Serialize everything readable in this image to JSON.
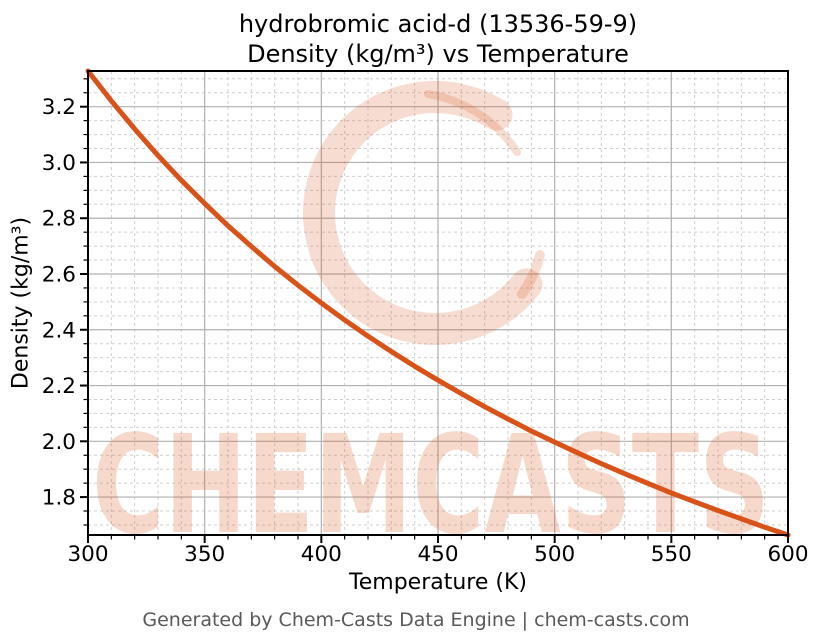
{
  "header": {
    "title_line1": "hydrobromic acid-d (13536-59-9)",
    "title_line2": "Density (kg/m³) vs Temperature"
  },
  "watermark": {
    "text": "CHEMCASTS",
    "color": "#d95319",
    "ring_opacity": 0.2,
    "text_opacity": 0.22
  },
  "footer": {
    "text": "Generated by Chem-Casts Data Engine | chem-casts.com"
  },
  "chart_data": {
    "type": "line",
    "title": "hydrobromic acid-d (13536-59-9) — Density (kg/m³) vs Temperature",
    "xlabel": "Temperature (K)",
    "ylabel": "Density (kg/m³)",
    "xlim": [
      300,
      600
    ],
    "ylim": [
      1.664,
      3.328
    ],
    "x_ticks": [
      300,
      350,
      400,
      450,
      500,
      550,
      600
    ],
    "y_ticks": [
      1.8,
      2.0,
      2.2,
      2.4,
      2.6,
      2.8,
      3.0,
      3.2
    ],
    "x_minor_step": 10,
    "y_minor_step": 0.05,
    "grid": {
      "major": true,
      "minor": true,
      "minor_style": "dashed"
    },
    "legend_position": "none",
    "line_color": "#d95319",
    "line_width": 5,
    "series": [
      {
        "name": "Density (kg/m³)",
        "x": [
          300,
          310,
          320,
          330,
          340,
          350,
          360,
          370,
          380,
          390,
          400,
          410,
          420,
          430,
          440,
          450,
          460,
          470,
          480,
          490,
          500,
          510,
          520,
          530,
          540,
          550,
          560,
          570,
          580,
          590,
          600
        ],
        "y": [
          3.328,
          3.221,
          3.12,
          3.025,
          2.936,
          2.853,
          2.773,
          2.699,
          2.627,
          2.56,
          2.496,
          2.435,
          2.377,
          2.322,
          2.269,
          2.219,
          2.171,
          2.124,
          2.08,
          2.037,
          1.997,
          1.958,
          1.92,
          1.884,
          1.849,
          1.815,
          1.783,
          1.752,
          1.722,
          1.692,
          1.664
        ]
      }
    ]
  }
}
